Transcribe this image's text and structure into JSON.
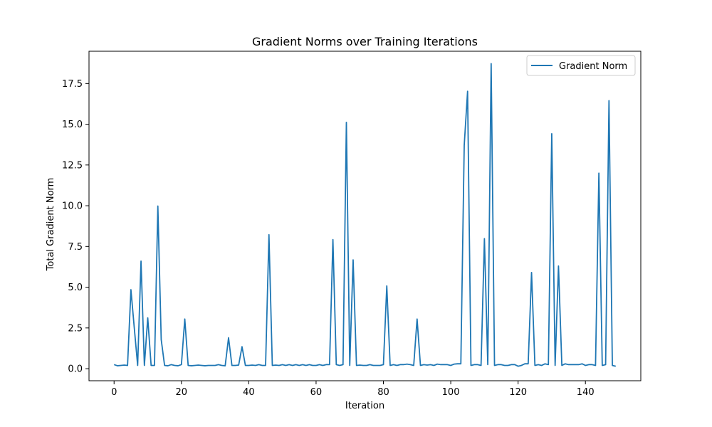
{
  "chart_data": {
    "type": "line",
    "title": "Gradient Norms over Training Iterations",
    "xlabel": "Iteration",
    "ylabel": "Total Gradient Norm",
    "xlim": [
      -7.45,
      156.45
    ],
    "ylim": [
      -0.74,
      19.48
    ],
    "xticks": [
      0,
      20,
      40,
      60,
      80,
      100,
      120,
      140
    ],
    "xtick_labels": [
      "0",
      "20",
      "40",
      "60",
      "80",
      "100",
      "120",
      "140"
    ],
    "yticks": [
      0,
      2.5,
      5,
      7.5,
      10,
      12.5,
      15,
      17.5
    ],
    "ytick_labels": [
      "0.0",
      "2.5",
      "5.0",
      "7.5",
      "10.0",
      "12.5",
      "15.0",
      "17.5"
    ],
    "grid": false,
    "legend_position": "top-right",
    "series": [
      {
        "name": "Gradient Norm",
        "color": "#1f77b4",
        "x": [
          0,
          1,
          2,
          3,
          4,
          5,
          6,
          7,
          8,
          9,
          10,
          11,
          12,
          13,
          14,
          15,
          16,
          17,
          18,
          19,
          20,
          21,
          22,
          23,
          24,
          25,
          26,
          27,
          28,
          29,
          30,
          31,
          32,
          33,
          34,
          35,
          36,
          37,
          38,
          39,
          40,
          41,
          42,
          43,
          44,
          45,
          46,
          47,
          48,
          49,
          50,
          51,
          52,
          53,
          54,
          55,
          56,
          57,
          58,
          59,
          60,
          61,
          62,
          63,
          64,
          65,
          66,
          67,
          68,
          69,
          70,
          71,
          72,
          73,
          74,
          75,
          76,
          77,
          78,
          79,
          80,
          81,
          82,
          83,
          84,
          85,
          86,
          87,
          88,
          89,
          90,
          91,
          92,
          93,
          94,
          95,
          96,
          97,
          98,
          99,
          100,
          101,
          102,
          103,
          104,
          105,
          106,
          107,
          108,
          109,
          110,
          111,
          112,
          113,
          114,
          115,
          116,
          117,
          118,
          119,
          120,
          121,
          122,
          123,
          124,
          125,
          126,
          127,
          128,
          129,
          130,
          131,
          132,
          133,
          134,
          135,
          136,
          137,
          138,
          139,
          140,
          141,
          142,
          143,
          144,
          145,
          146,
          147,
          148,
          149
        ],
        "values": [
          0.25,
          0.18,
          0.2,
          0.22,
          0.2,
          4.85,
          2.5,
          0.2,
          6.6,
          0.2,
          3.12,
          0.2,
          0.2,
          9.98,
          1.78,
          0.2,
          0.18,
          0.25,
          0.2,
          0.18,
          0.25,
          3.05,
          0.2,
          0.18,
          0.2,
          0.22,
          0.2,
          0.18,
          0.2,
          0.2,
          0.2,
          0.25,
          0.2,
          0.18,
          1.9,
          0.2,
          0.2,
          0.22,
          1.35,
          0.2,
          0.2,
          0.22,
          0.2,
          0.25,
          0.2,
          0.2,
          8.22,
          0.2,
          0.22,
          0.2,
          0.25,
          0.2,
          0.25,
          0.2,
          0.25,
          0.2,
          0.25,
          0.2,
          0.25,
          0.2,
          0.2,
          0.25,
          0.2,
          0.25,
          0.25,
          7.92,
          0.25,
          0.2,
          0.25,
          15.12,
          0.2,
          6.68,
          0.2,
          0.22,
          0.2,
          0.2,
          0.25,
          0.2,
          0.2,
          0.2,
          0.25,
          5.08,
          0.2,
          0.25,
          0.2,
          0.25,
          0.25,
          0.28,
          0.25,
          0.2,
          3.05,
          0.2,
          0.25,
          0.22,
          0.25,
          0.2,
          0.28,
          0.25,
          0.25,
          0.25,
          0.2,
          0.28,
          0.3,
          0.3,
          13.7,
          17.02,
          0.2,
          0.25,
          0.25,
          0.2,
          7.98,
          0.25,
          18.72,
          0.2,
          0.25,
          0.25,
          0.2,
          0.2,
          0.25,
          0.25,
          0.15,
          0.2,
          0.3,
          0.3,
          5.9,
          0.2,
          0.25,
          0.2,
          0.3,
          0.25,
          14.42,
          0.2,
          6.3,
          0.2,
          0.3,
          0.25,
          0.25,
          0.25,
          0.25,
          0.3,
          0.2,
          0.25,
          0.25,
          0.2,
          12.0,
          0.2,
          0.25,
          16.45,
          0.2,
          0.15
        ]
      }
    ]
  }
}
